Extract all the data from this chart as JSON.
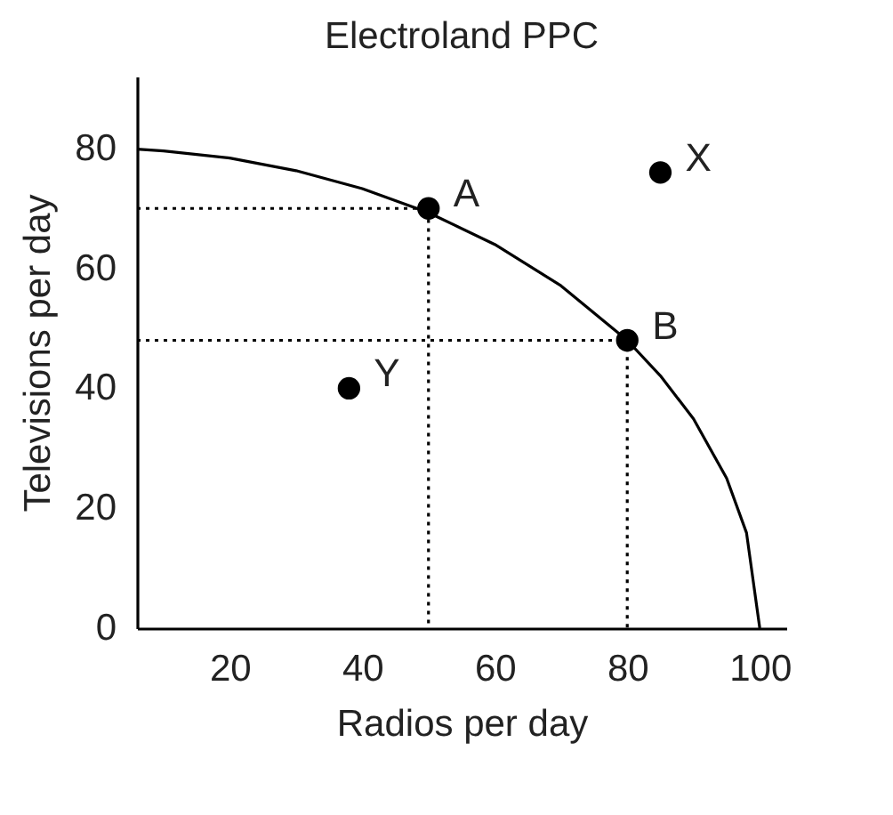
{
  "chart_data": {
    "type": "line",
    "title": "Electroland PPC",
    "xlabel": "Radios per day",
    "ylabel": "Televisions per day",
    "xlim": [
      6,
      104
    ],
    "ylim": [
      0,
      92
    ],
    "xticks": [
      20,
      40,
      60,
      80,
      100
    ],
    "yticks": [
      0,
      20,
      40,
      60,
      80
    ],
    "grid": false,
    "series": [
      {
        "line_style": "solid",
        "color": "#000000",
        "x": [
          6,
          10,
          20,
          30,
          40,
          50,
          60,
          70,
          80,
          85,
          90,
          95,
          98,
          100
        ],
        "values": [
          79.9,
          79.6,
          78.4,
          76.3,
          73.3,
          69.3,
          64,
          57.1,
          48,
          42.1,
          34.9,
          25,
          15.9,
          0
        ]
      },
      {
        "type": "line",
        "line_style": "dotted",
        "color": "#000000",
        "x": [
          6,
          50,
          50
        ],
        "values": [
          70,
          70,
          0
        ]
      },
      {
        "type": "line",
        "line_style": "dotted",
        "color": "#000000",
        "x": [
          6,
          80,
          80
        ],
        "values": [
          48,
          48,
          0
        ]
      },
      {
        "type": "scatter",
        "marker": "circle",
        "color": "#000000",
        "x": [
          50,
          80,
          85,
          38
        ],
        "values": [
          70,
          48,
          76,
          40
        ]
      }
    ],
    "annotations": [
      {
        "text": "A",
        "x": 50,
        "y": 70
      },
      {
        "text": "B",
        "x": 80,
        "y": 48
      },
      {
        "text": "X",
        "x": 85,
        "y": 76
      },
      {
        "text": "Y",
        "x": 38,
        "y": 40
      }
    ]
  }
}
